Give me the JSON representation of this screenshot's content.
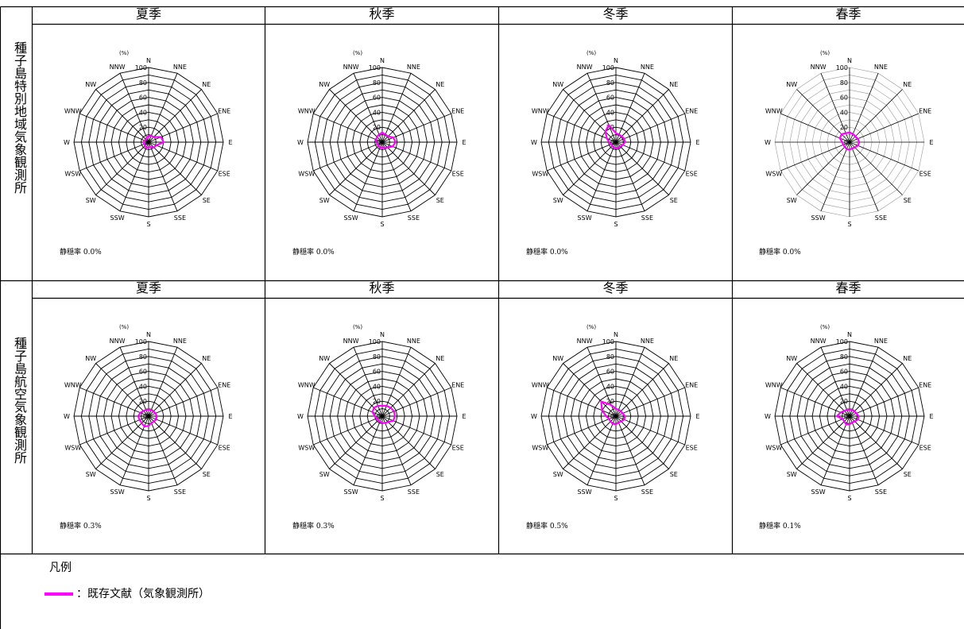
{
  "row_labels": [
    "種子島特別地域気象観測所",
    "種子島航空気象観測所"
  ],
  "legend": {
    "title": "凡例",
    "label": "：既存文献（気象観測所）",
    "color": "#ff00ff"
  },
  "chart_data": [
    {
      "type": "radar",
      "row": 0,
      "col": 0,
      "title": "夏季",
      "calm": "静穏率 0.0%",
      "directions": [
        "N",
        "NNE",
        "NE",
        "ENE",
        "E",
        "ESE",
        "SE",
        "SSE",
        "S",
        "SSW",
        "SW",
        "WSW",
        "W",
        "WNW",
        "NW",
        "NNW"
      ],
      "unit": "(%)",
      "rlim": [
        0,
        100
      ],
      "ticks": [
        0,
        20,
        40,
        60,
        80,
        100
      ],
      "series": [
        {
          "values": [
            8,
            9,
            10,
            18,
            20,
            11,
            10,
            7,
            7,
            8,
            7,
            6,
            7,
            6,
            5,
            7
          ],
          "color": "#ff00ff"
        }
      ]
    },
    {
      "type": "radar",
      "row": 0,
      "col": 1,
      "title": "秋季",
      "calm": "静穏率 0.0%",
      "directions": [
        "N",
        "NNE",
        "NE",
        "ENE",
        "E",
        "ESE",
        "SE",
        "SSE",
        "S",
        "SSW",
        "SW",
        "WSW",
        "W",
        "WNW",
        "NW",
        "NNW"
      ],
      "unit": "(%)",
      "rlim": [
        0,
        100
      ],
      "ticks": [
        0,
        20,
        40,
        60,
        80,
        100
      ],
      "series": [
        {
          "values": [
            13,
            11,
            11,
            16,
            18,
            15,
            10,
            8,
            7,
            8,
            7,
            7,
            8,
            9,
            10,
            11
          ],
          "color": "#ff00ff"
        }
      ]
    },
    {
      "type": "radar",
      "row": 0,
      "col": 2,
      "title": "冬季",
      "calm": "静穏率 0.0%",
      "directions": [
        "N",
        "NNE",
        "NE",
        "ENE",
        "E",
        "ESE",
        "SE",
        "SSE",
        "S",
        "SSW",
        "SW",
        "WSW",
        "W",
        "WNW",
        "NW",
        "NNW"
      ],
      "unit": "(%)",
      "rlim": [
        0,
        100
      ],
      "ticks": [
        0,
        20,
        40,
        60,
        80,
        100
      ],
      "series": [
        {
          "values": [
            12,
            11,
            11,
            12,
            12,
            10,
            8,
            8,
            8,
            8,
            7,
            7,
            9,
            13,
            20,
            25
          ],
          "color": "#ff00ff"
        }
      ]
    },
    {
      "type": "radar",
      "row": 0,
      "col": 3,
      "title": "春季",
      "calm": "静穏率 0.0%",
      "directions": [
        "N",
        "NNE",
        "NE",
        "ENE",
        "E",
        "ESE",
        "SE",
        "SSE",
        "S",
        "SSW",
        "SW",
        "WSW",
        "W",
        "WNW",
        "NW",
        "NNW"
      ],
      "unit": "(%)",
      "rlim": [
        0,
        100
      ],
      "ticks": [
        0,
        20,
        40,
        60,
        80,
        100
      ],
      "series": [
        {
          "values": [
            13,
            12,
            11,
            12,
            13,
            12,
            10,
            9,
            10,
            10,
            9,
            9,
            10,
            14,
            15,
            13
          ],
          "color": "#ff00ff"
        }
      ]
    },
    {
      "type": "radar",
      "row": 1,
      "col": 0,
      "title": "夏季",
      "calm": "静穏率 0.3%",
      "directions": [
        "N",
        "NNE",
        "NE",
        "ENE",
        "E",
        "ESE",
        "SE",
        "SSE",
        "S",
        "SSW",
        "SW",
        "WSW",
        "W",
        "WNW",
        "NW",
        "NNW"
      ],
      "unit": "(%)",
      "rlim": [
        0,
        100
      ],
      "ticks": [
        0,
        20,
        40,
        60,
        80,
        100
      ],
      "series": [
        {
          "values": [
            9,
            9,
            9,
            10,
            11,
            11,
            10,
            10,
            13,
            15,
            13,
            13,
            14,
            12,
            10,
            9
          ],
          "color": "#ff00ff"
        }
      ]
    },
    {
      "type": "radar",
      "row": 1,
      "col": 1,
      "title": "秋季",
      "calm": "静穏率 0.3%",
      "directions": [
        "N",
        "NNE",
        "NE",
        "ENE",
        "E",
        "ESE",
        "SE",
        "SSE",
        "S",
        "SSW",
        "SW",
        "WSW",
        "W",
        "WNW",
        "NW",
        "NNW"
      ],
      "unit": "(%)",
      "rlim": [
        0,
        100
      ],
      "ticks": [
        0,
        20,
        40,
        60,
        80,
        100
      ],
      "series": [
        {
          "values": [
            14,
            15,
            16,
            17,
            17,
            16,
            11,
            10,
            9,
            8,
            8,
            8,
            10,
            14,
            16,
            15
          ],
          "color": "#ff00ff"
        }
      ]
    },
    {
      "type": "radar",
      "row": 1,
      "col": 2,
      "title": "冬季",
      "calm": "静穏率 0.5%",
      "directions": [
        "N",
        "NNE",
        "NE",
        "ENE",
        "E",
        "ESE",
        "SE",
        "SSE",
        "S",
        "SSW",
        "SW",
        "WSW",
        "W",
        "WNW",
        "NW",
        "NNW"
      ],
      "unit": "(%)",
      "rlim": [
        0,
        100
      ],
      "ticks": [
        0,
        20,
        40,
        60,
        80,
        100
      ],
      "series": [
        {
          "values": [
            10,
            9,
            9,
            10,
            12,
            12,
            10,
            9,
            11,
            11,
            10,
            10,
            13,
            20,
            28,
            16
          ],
          "color": "#ff00ff"
        }
      ]
    },
    {
      "type": "radar",
      "row": 1,
      "col": 3,
      "title": "春季",
      "calm": "静穏率 0.1%",
      "directions": [
        "N",
        "NNE",
        "NE",
        "ENE",
        "E",
        "ESE",
        "SE",
        "SSE",
        "S",
        "SSW",
        "SW",
        "WSW",
        "W",
        "WNW",
        "NW",
        "NNW"
      ],
      "unit": "(%)",
      "rlim": [
        0,
        100
      ],
      "ticks": [
        0,
        20,
        40,
        60,
        80,
        100
      ],
      "series": [
        {
          "values": [
            9,
            9,
            9,
            10,
            12,
            12,
            10,
            9,
            11,
            12,
            10,
            10,
            17,
            13,
            10,
            9
          ],
          "color": "#ff00ff"
        }
      ]
    }
  ]
}
